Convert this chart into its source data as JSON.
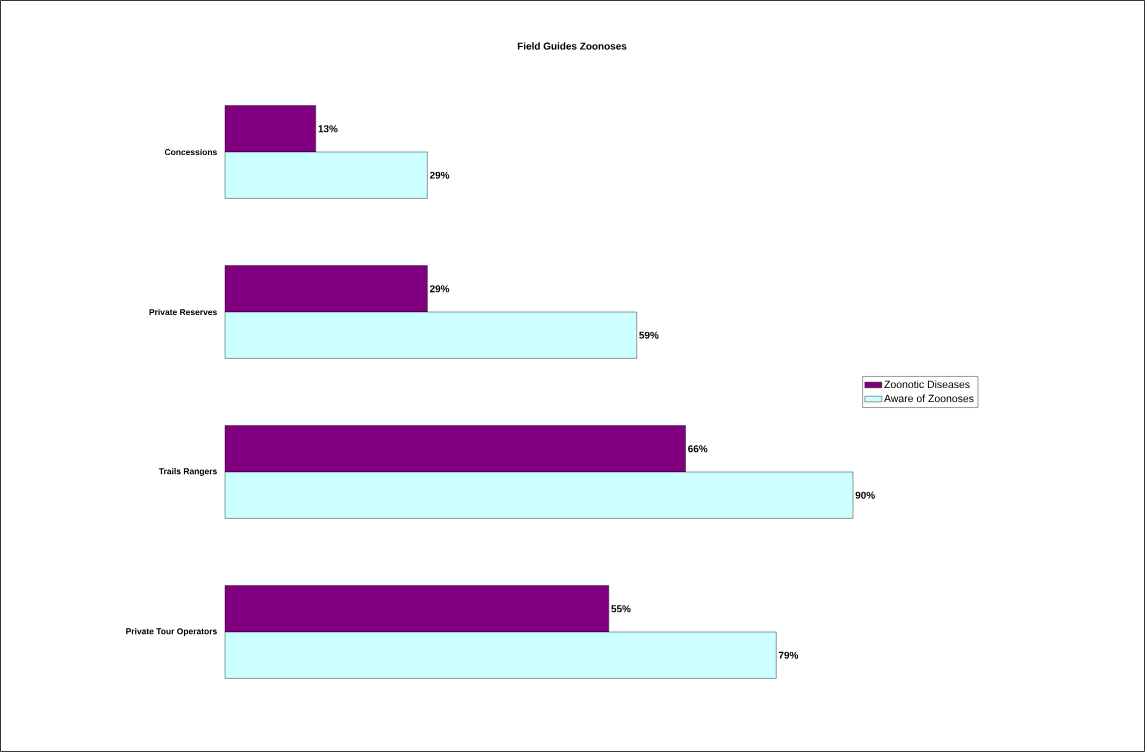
{
  "chart_data": {
    "type": "bar",
    "orientation": "horizontal",
    "title": "Field Guides Zoonoses",
    "categories": [
      "Concessions",
      "Private Reserves",
      "Trails Rangers",
      "Private Tour Operators"
    ],
    "series": [
      {
        "name": "Zoonotic Diseases",
        "color": "#800080",
        "values": [
          13,
          29,
          66,
          55
        ],
        "value_labels": [
          "13%",
          "29%",
          "66%",
          "55%"
        ]
      },
      {
        "name": "Aware of Zoonoses",
        "color": "#ccffff",
        "values": [
          29,
          59,
          90,
          79
        ],
        "value_labels": [
          "29%",
          "59%",
          "90%",
          "79%"
        ]
      }
    ],
    "tick_labels": "y",
    "legend": "right"
  }
}
